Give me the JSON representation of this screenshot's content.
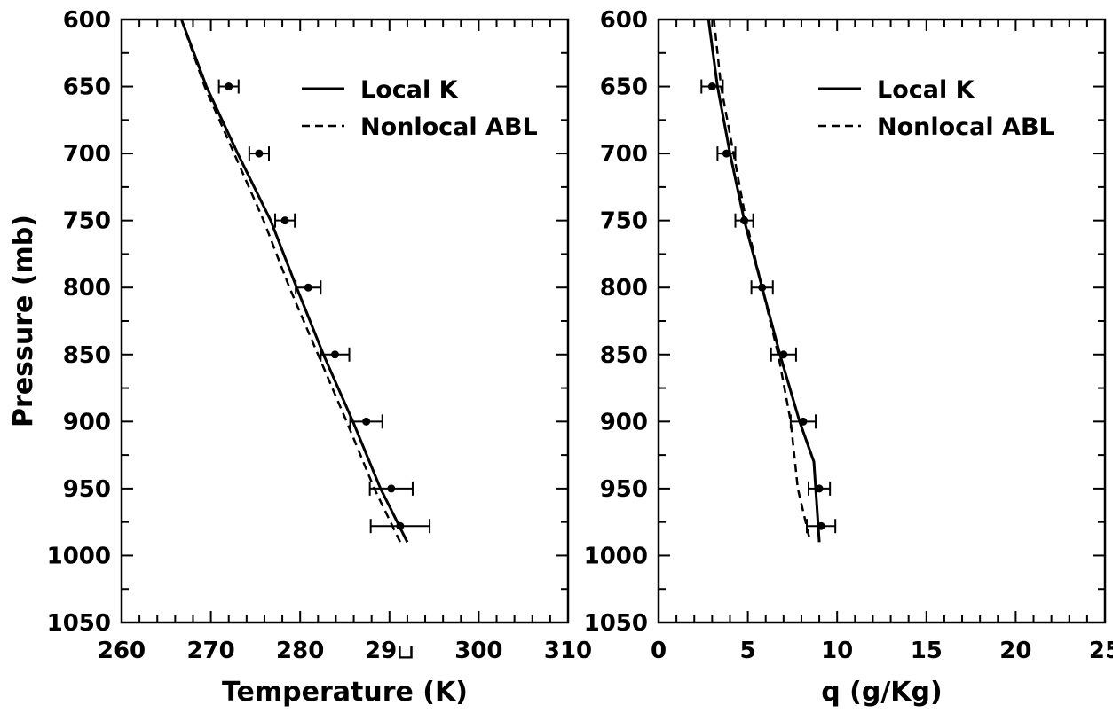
{
  "chart_data": [
    {
      "type": "line",
      "xlabel": "Temperature (K)",
      "ylabel": "Pressure (mb)",
      "xlim": [
        260,
        310
      ],
      "ylim": [
        1050,
        600
      ],
      "y_inverted": true,
      "x_ticks": [
        260,
        270,
        280,
        290,
        300,
        310
      ],
      "y_ticks": [
        600,
        650,
        700,
        750,
        800,
        850,
        900,
        950,
        1000,
        1050
      ],
      "x_tick_labels": [
        "260",
        "270",
        "280",
        "29ப",
        "300",
        "310"
      ],
      "y_tick_labels": [
        "600",
        "650",
        "700",
        "750",
        "800",
        "850",
        "900",
        "950",
        "1000",
        "1050"
      ],
      "legend_position": "top-right",
      "series": [
        {
          "name": "Local K",
          "style": "solid",
          "x": [
            266.7,
            269.5,
            273.0,
            276.7,
            279.6,
            282.6,
            285.9,
            289.0,
            292.0
          ],
          "y": [
            600,
            650,
            700,
            750,
            800,
            850,
            900,
            950,
            990
          ]
        },
        {
          "name": "Nonlocal ABL",
          "style": "dashed",
          "x": [
            266.7,
            269.3,
            272.6,
            275.9,
            278.8,
            282.0,
            285.2,
            288.3,
            291.2
          ],
          "y": [
            600,
            650,
            700,
            750,
            800,
            850,
            900,
            950,
            990
          ]
        }
      ],
      "observations": {
        "style": "points with horizontal error bars",
        "x": [
          272.0,
          275.4,
          278.3,
          280.9,
          283.9,
          287.4,
          290.2,
          291.2
        ],
        "y": [
          650,
          700,
          750,
          800,
          850,
          900,
          950,
          978
        ],
        "xerr": [
          1.1,
          1.1,
          1.1,
          1.4,
          1.6,
          1.8,
          2.4,
          3.3
        ]
      }
    },
    {
      "type": "line",
      "xlabel": "q (g/Kg)",
      "ylabel": "",
      "xlim": [
        0,
        25
      ],
      "ylim": [
        1050,
        600
      ],
      "y_inverted": true,
      "x_ticks": [
        0,
        5,
        10,
        15,
        20,
        25
      ],
      "y_ticks": [
        600,
        650,
        700,
        750,
        800,
        850,
        900,
        950,
        1000,
        1050
      ],
      "x_tick_labels": [
        "0",
        "5",
        "10",
        "15",
        "20",
        "25"
      ],
      "y_tick_labels": [
        "600",
        "650",
        "700",
        "750",
        "800",
        "850",
        "900",
        "950",
        "1000",
        "1050"
      ],
      "legend_position": "top-right",
      "series": [
        {
          "name": "Local K",
          "style": "solid",
          "x": [
            2.8,
            3.3,
            4.0,
            4.8,
            5.8,
            6.8,
            7.9,
            8.7,
            9.0
          ],
          "y": [
            600,
            650,
            700,
            750,
            800,
            850,
            900,
            930,
            990
          ]
        },
        {
          "name": "Nonlocal ABL",
          "style": "dashed",
          "x": [
            3.1,
            3.5,
            4.2,
            4.9,
            5.8,
            6.7,
            7.4,
            7.8,
            8.5
          ],
          "y": [
            600,
            650,
            700,
            750,
            800,
            850,
            900,
            950,
            990
          ]
        }
      ],
      "observations": {
        "style": "points with horizontal error bars",
        "x": [
          3.0,
          3.8,
          4.8,
          5.8,
          7.0,
          8.1,
          9.0,
          9.1
        ],
        "y": [
          650,
          700,
          750,
          800,
          850,
          900,
          950,
          978
        ],
        "xerr": [
          0.6,
          0.5,
          0.5,
          0.6,
          0.7,
          0.7,
          0.6,
          0.8
        ]
      }
    }
  ]
}
